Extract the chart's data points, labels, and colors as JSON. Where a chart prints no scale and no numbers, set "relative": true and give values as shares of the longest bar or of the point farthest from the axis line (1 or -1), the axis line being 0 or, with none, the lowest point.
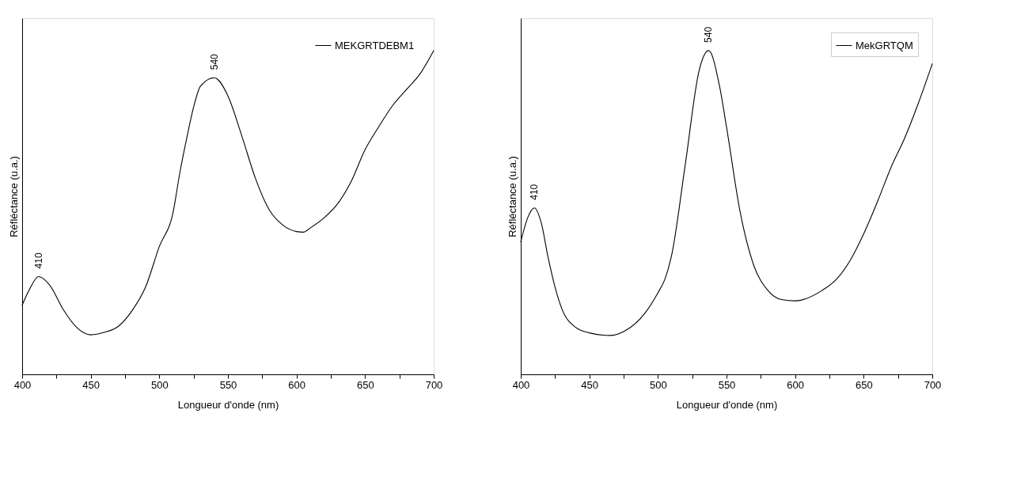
{
  "chart_data": [
    {
      "type": "line",
      "relative": true,
      "xlabel": "Longueur d'onde (nm)",
      "ylabel": "Réfléctance (u.a.)",
      "xlim": [
        400,
        700
      ],
      "xticks": [
        400,
        {
          "value": 425,
          "label": null
        },
        450,
        {
          "value": 475,
          "label": null
        },
        500,
        {
          "value": 525,
          "label": null
        },
        550,
        {
          "value": 575,
          "label": null
        },
        600,
        {
          "value": 625,
          "label": null
        },
        650,
        {
          "value": 675,
          "label": null
        },
        700
      ],
      "tick_labels": "x",
      "grid": false,
      "legend": "top right",
      "series": [
        {
          "name": "MEKGRTDEBM1",
          "color": "#000000",
          "x": [
            400,
            405,
            412,
            420,
            430,
            440,
            450,
            460,
            470,
            480,
            490,
            500,
            510,
            515,
            520,
            525,
            530,
            540,
            550,
            560,
            570,
            580,
            590,
            600,
            605,
            610,
            620,
            630,
            640,
            650,
            660,
            670,
            680,
            690,
            700
          ],
          "values": [
            0.214,
            0.26,
            0.302,
            0.276,
            0.2,
            0.144,
            0.122,
            0.13,
            0.148,
            0.196,
            0.27,
            0.395,
            0.5,
            0.624,
            0.73,
            0.826,
            0.89,
            0.916,
            0.86,
            0.738,
            0.606,
            0.509,
            0.461,
            0.441,
            0.439,
            0.452,
            0.483,
            0.527,
            0.597,
            0.694,
            0.765,
            0.83,
            0.879,
            0.928,
            1.0
          ]
        }
      ],
      "annotations": [
        {
          "text": "410",
          "x": 412,
          "y": 0.302
        },
        {
          "text": "540",
          "x": 540,
          "y": 0.916
        }
      ]
    },
    {
      "type": "line",
      "relative": true,
      "xlabel": "Longueur d'onde (nm)",
      "ylabel": "Réfléctance (u.a.)",
      "xlim": [
        400,
        700
      ],
      "xticks": [
        400,
        {
          "value": 425,
          "label": null
        },
        450,
        {
          "value": 475,
          "label": null
        },
        500,
        {
          "value": 525,
          "label": null
        },
        550,
        {
          "value": 575,
          "label": null
        },
        600,
        {
          "value": 625,
          "label": null
        },
        650,
        {
          "value": 675,
          "label": null
        },
        700
      ],
      "tick_labels": "x",
      "grid": false,
      "legend": "top right",
      "series": [
        {
          "name": "MekGRTQM",
          "color": "#000000",
          "x": [
            400,
            405,
            410,
            415,
            420,
            425,
            430,
            440,
            450,
            465,
            475,
            490,
            500,
            505,
            510,
            520,
            530,
            537,
            545,
            550,
            560,
            570,
            580,
            590,
            600,
            620,
            630,
            640,
            650,
            660,
            670,
            680,
            690,
            700
          ],
          "values": [
            0.409,
            0.483,
            0.514,
            0.467,
            0.36,
            0.269,
            0.202,
            0.145,
            0.128,
            0.12,
            0.132,
            0.186,
            0.252,
            0.293,
            0.368,
            0.65,
            0.938,
            1.0,
            0.888,
            0.764,
            0.5,
            0.335,
            0.26,
            0.231,
            0.227,
            0.26,
            0.293,
            0.351,
            0.434,
            0.533,
            0.64,
            0.731,
            0.839,
            0.959
          ]
        }
      ],
      "annotations": [
        {
          "text": "410",
          "x": 410,
          "y": 0.514
        },
        {
          "text": "540",
          "x": 537,
          "y": 1.0
        }
      ]
    }
  ]
}
